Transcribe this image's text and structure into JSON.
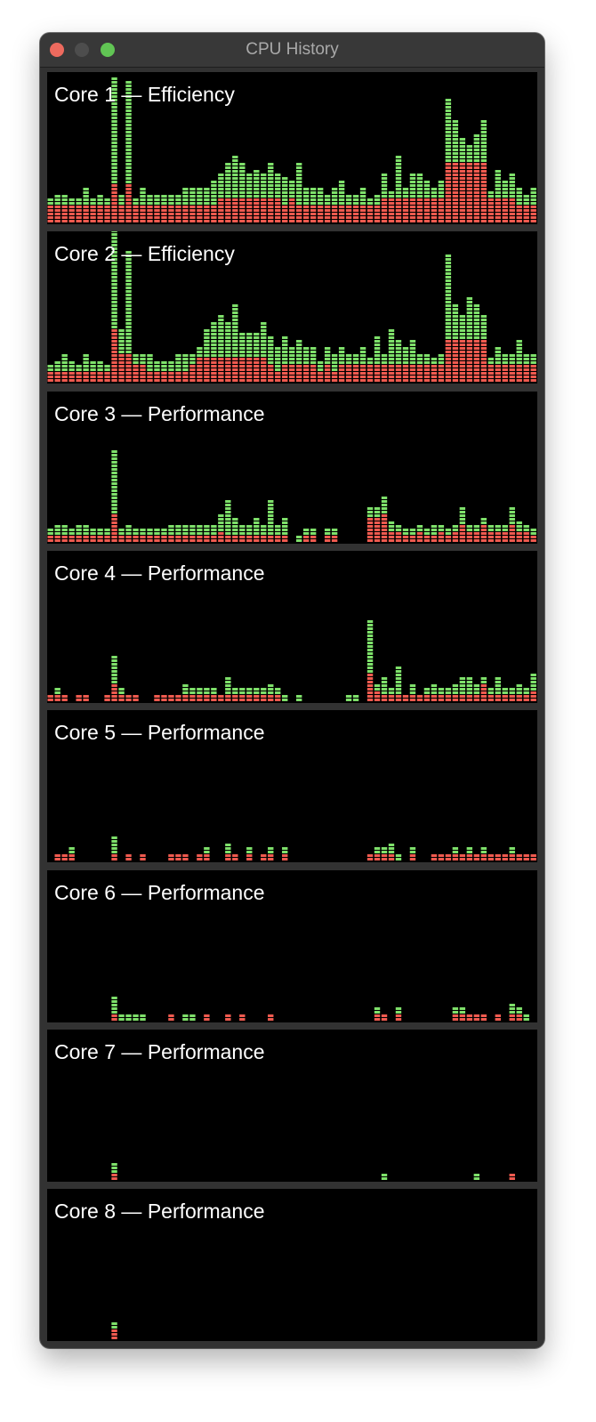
{
  "window": {
    "title": "CPU History",
    "controls": {
      "close": {
        "icon": "close-icon",
        "color": "#ed6a5e"
      },
      "minimize": {
        "icon": "minimize-icon",
        "color": "#4d4d4d"
      },
      "zoom": {
        "icon": "zoom-icon",
        "color": "#61c554"
      }
    }
  },
  "colors": {
    "user": "#7ee06a",
    "system": "#ef5a4f",
    "background": "#000000"
  },
  "chart_data": {
    "type": "bar",
    "stacked": true,
    "max_value": 100,
    "stack_order": [
      "system",
      "user"
    ],
    "cores": [
      {
        "label": "Core 1 — Efficiency",
        "system": [
          12,
          12,
          12,
          12,
          12,
          12,
          12,
          12,
          12,
          25,
          12,
          25,
          12,
          12,
          12,
          12,
          12,
          12,
          12,
          12,
          12,
          12,
          12,
          12,
          16,
          16,
          16,
          16,
          16,
          16,
          16,
          16,
          16,
          12,
          16,
          12,
          12,
          12,
          12,
          12,
          12,
          12,
          12,
          12,
          12,
          12,
          12,
          16,
          16,
          16,
          16,
          16,
          16,
          16,
          16,
          16,
          40,
          40,
          40,
          40,
          40,
          40,
          16,
          16,
          16,
          16,
          12,
          12,
          12
        ],
        "user": [
          4,
          8,
          8,
          4,
          4,
          12,
          4,
          8,
          4,
          72,
          8,
          68,
          4,
          12,
          8,
          8,
          8,
          8,
          8,
          12,
          12,
          12,
          12,
          16,
          16,
          24,
          28,
          24,
          16,
          20,
          16,
          24,
          16,
          20,
          12,
          28,
          12,
          12,
          12,
          8,
          12,
          16,
          8,
          8,
          12,
          4,
          8,
          16,
          4,
          28,
          8,
          16,
          16,
          12,
          8,
          12,
          44,
          28,
          16,
          12,
          20,
          28,
          4,
          20,
          12,
          16,
          12,
          8,
          12
        ]
      },
      {
        "label": "Core 2 — Efficiency",
        "system": [
          8,
          8,
          8,
          8,
          8,
          8,
          8,
          8,
          8,
          36,
          20,
          20,
          12,
          12,
          8,
          8,
          8,
          8,
          8,
          8,
          12,
          16,
          16,
          16,
          16,
          16,
          16,
          16,
          16,
          16,
          16,
          12,
          8,
          12,
          12,
          12,
          12,
          12,
          8,
          12,
          8,
          12,
          12,
          12,
          12,
          12,
          12,
          12,
          12,
          12,
          12,
          12,
          12,
          12,
          12,
          12,
          28,
          28,
          28,
          28,
          28,
          28,
          12,
          12,
          12,
          12,
          12,
          12,
          12
        ],
        "user": [
          4,
          8,
          12,
          8,
          4,
          12,
          8,
          8,
          4,
          80,
          16,
          68,
          8,
          8,
          12,
          8,
          8,
          8,
          12,
          12,
          8,
          8,
          20,
          24,
          28,
          24,
          36,
          16,
          16,
          16,
          24,
          20,
          16,
          20,
          12,
          16,
          12,
          12,
          8,
          12,
          12,
          12,
          8,
          8,
          12,
          4,
          20,
          8,
          24,
          16,
          12,
          16,
          8,
          8,
          4,
          8,
          56,
          24,
          16,
          28,
          24,
          16,
          4,
          12,
          8,
          8,
          16,
          8,
          8
        ]
      },
      {
        "label": "Core 3 — Performance",
        "system": [
          4,
          4,
          4,
          4,
          4,
          4,
          4,
          4,
          4,
          20,
          4,
          4,
          4,
          4,
          4,
          4,
          4,
          4,
          4,
          4,
          4,
          4,
          4,
          4,
          8,
          4,
          4,
          4,
          4,
          4,
          4,
          4,
          4,
          4,
          0,
          0,
          4,
          4,
          0,
          4,
          4,
          0,
          0,
          0,
          0,
          16,
          16,
          20,
          8,
          8,
          4,
          4,
          8,
          4,
          4,
          8,
          4,
          8,
          12,
          8,
          8,
          12,
          8,
          8,
          8,
          12,
          8,
          8,
          4
        ],
        "user": [
          4,
          8,
          8,
          4,
          8,
          8,
          4,
          4,
          4,
          44,
          4,
          8,
          4,
          4,
          4,
          4,
          4,
          8,
          8,
          8,
          8,
          8,
          8,
          8,
          12,
          24,
          12,
          8,
          8,
          12,
          8,
          24,
          8,
          12,
          0,
          4,
          4,
          4,
          0,
          4,
          4,
          0,
          0,
          0,
          0,
          8,
          8,
          12,
          8,
          4,
          4,
          4,
          4,
          4,
          8,
          4,
          4,
          4,
          12,
          4,
          4,
          4,
          4,
          4,
          4,
          12,
          8,
          4,
          4
        ]
      },
      {
        "label": "Core 4 — Performance",
        "system": [
          4,
          4,
          4,
          0,
          4,
          4,
          0,
          0,
          4,
          12,
          4,
          4,
          4,
          0,
          0,
          4,
          4,
          4,
          4,
          4,
          4,
          4,
          4,
          4,
          4,
          4,
          4,
          4,
          4,
          4,
          4,
          4,
          4,
          0,
          0,
          0,
          0,
          0,
          0,
          0,
          0,
          0,
          0,
          0,
          0,
          20,
          8,
          4,
          4,
          4,
          4,
          4,
          4,
          4,
          4,
          4,
          4,
          4,
          4,
          4,
          4,
          12,
          4,
          4,
          4,
          4,
          4,
          4,
          8
        ],
        "user": [
          0,
          4,
          0,
          0,
          0,
          0,
          0,
          0,
          0,
          20,
          4,
          0,
          0,
          0,
          0,
          0,
          0,
          0,
          0,
          8,
          4,
          4,
          4,
          4,
          0,
          12,
          4,
          4,
          4,
          4,
          4,
          8,
          4,
          4,
          0,
          4,
          0,
          0,
          0,
          0,
          0,
          0,
          4,
          4,
          0,
          36,
          4,
          12,
          4,
          20,
          0,
          8,
          0,
          4,
          8,
          4,
          4,
          8,
          12,
          12,
          8,
          4,
          4,
          12,
          4,
          4,
          8,
          4,
          12
        ]
      },
      {
        "label": "Core 5 — Performance",
        "system": [
          0,
          4,
          4,
          4,
          0,
          0,
          0,
          0,
          0,
          4,
          0,
          4,
          0,
          4,
          0,
          0,
          0,
          4,
          4,
          4,
          0,
          4,
          4,
          0,
          0,
          4,
          4,
          0,
          4,
          0,
          4,
          4,
          0,
          4,
          0,
          0,
          0,
          0,
          0,
          0,
          0,
          0,
          0,
          0,
          0,
          4,
          4,
          4,
          4,
          0,
          0,
          4,
          0,
          0,
          4,
          4,
          4,
          4,
          4,
          4,
          4,
          4,
          4,
          4,
          4,
          4,
          4,
          4,
          4
        ],
        "user": [
          0,
          0,
          0,
          4,
          0,
          0,
          0,
          0,
          0,
          12,
          0,
          0,
          0,
          0,
          0,
          0,
          0,
          0,
          0,
          0,
          0,
          0,
          4,
          0,
          0,
          8,
          0,
          0,
          4,
          0,
          0,
          4,
          0,
          4,
          0,
          0,
          0,
          0,
          0,
          0,
          0,
          0,
          0,
          0,
          0,
          0,
          4,
          4,
          8,
          4,
          0,
          4,
          0,
          0,
          0,
          0,
          0,
          4,
          0,
          4,
          0,
          4,
          0,
          0,
          0,
          4,
          0,
          0,
          0
        ]
      },
      {
        "label": "Core 6 — Performance",
        "system": [
          0,
          0,
          0,
          0,
          0,
          0,
          0,
          0,
          0,
          4,
          0,
          0,
          0,
          0,
          0,
          0,
          0,
          4,
          0,
          0,
          0,
          0,
          4,
          0,
          0,
          4,
          0,
          4,
          0,
          0,
          0,
          4,
          0,
          0,
          0,
          0,
          0,
          0,
          0,
          0,
          0,
          0,
          0,
          0,
          0,
          0,
          4,
          4,
          0,
          4,
          0,
          0,
          0,
          0,
          0,
          0,
          0,
          4,
          4,
          4,
          4,
          4,
          0,
          4,
          0,
          4,
          4,
          0,
          0
        ],
        "user": [
          0,
          0,
          0,
          0,
          0,
          0,
          0,
          0,
          0,
          12,
          4,
          4,
          4,
          4,
          0,
          0,
          0,
          0,
          0,
          4,
          4,
          0,
          0,
          0,
          0,
          0,
          0,
          0,
          0,
          0,
          0,
          0,
          0,
          0,
          0,
          0,
          0,
          0,
          0,
          0,
          0,
          0,
          0,
          0,
          0,
          0,
          4,
          0,
          0,
          4,
          0,
          0,
          0,
          0,
          0,
          0,
          0,
          4,
          4,
          0,
          0,
          0,
          0,
          0,
          0,
          8,
          4,
          4,
          0
        ]
      },
      {
        "label": "Core 7 — Performance",
        "system": [
          0,
          0,
          0,
          0,
          0,
          0,
          0,
          0,
          0,
          4,
          0,
          0,
          0,
          0,
          0,
          0,
          0,
          0,
          0,
          0,
          0,
          0,
          0,
          0,
          0,
          0,
          0,
          0,
          0,
          0,
          0,
          0,
          0,
          0,
          0,
          0,
          0,
          0,
          0,
          0,
          0,
          0,
          0,
          0,
          0,
          0,
          0,
          0,
          0,
          0,
          0,
          0,
          0,
          0,
          0,
          0,
          0,
          0,
          0,
          0,
          0,
          0,
          0,
          0,
          0,
          4,
          0,
          0,
          0
        ],
        "user": [
          0,
          0,
          0,
          0,
          0,
          0,
          0,
          0,
          0,
          8,
          0,
          0,
          0,
          0,
          0,
          0,
          0,
          0,
          0,
          0,
          0,
          0,
          0,
          0,
          0,
          0,
          0,
          0,
          0,
          0,
          0,
          0,
          0,
          0,
          0,
          0,
          0,
          0,
          0,
          0,
          0,
          0,
          0,
          0,
          0,
          0,
          0,
          4,
          0,
          0,
          0,
          0,
          0,
          0,
          0,
          0,
          0,
          0,
          0,
          0,
          4,
          0,
          0,
          0,
          0,
          0,
          0,
          0,
          0
        ]
      },
      {
        "label": "Core 8 — Performance",
        "system": [
          0,
          0,
          0,
          0,
          0,
          0,
          0,
          0,
          0,
          8,
          0,
          0,
          0,
          0,
          0,
          0,
          0,
          0,
          0,
          0,
          0,
          0,
          0,
          0,
          0,
          0,
          0,
          0,
          0,
          0,
          0,
          0,
          0,
          0,
          0,
          0,
          0,
          0,
          0,
          0,
          0,
          0,
          0,
          0,
          0,
          0,
          0,
          0,
          0,
          0,
          0,
          0,
          0,
          0,
          0,
          0,
          0,
          0,
          0,
          0,
          0,
          0,
          0,
          0,
          0,
          0,
          0,
          0,
          0
        ],
        "user": [
          0,
          0,
          0,
          0,
          0,
          0,
          0,
          0,
          0,
          4,
          0,
          0,
          0,
          0,
          0,
          0,
          0,
          0,
          0,
          0,
          0,
          0,
          0,
          0,
          0,
          0,
          0,
          0,
          0,
          0,
          0,
          0,
          0,
          0,
          0,
          0,
          0,
          0,
          0,
          0,
          0,
          0,
          0,
          0,
          0,
          0,
          0,
          0,
          0,
          0,
          0,
          0,
          0,
          0,
          0,
          0,
          0,
          0,
          0,
          0,
          0,
          0,
          0,
          0,
          0,
          0,
          0,
          0,
          0
        ]
      }
    ]
  }
}
